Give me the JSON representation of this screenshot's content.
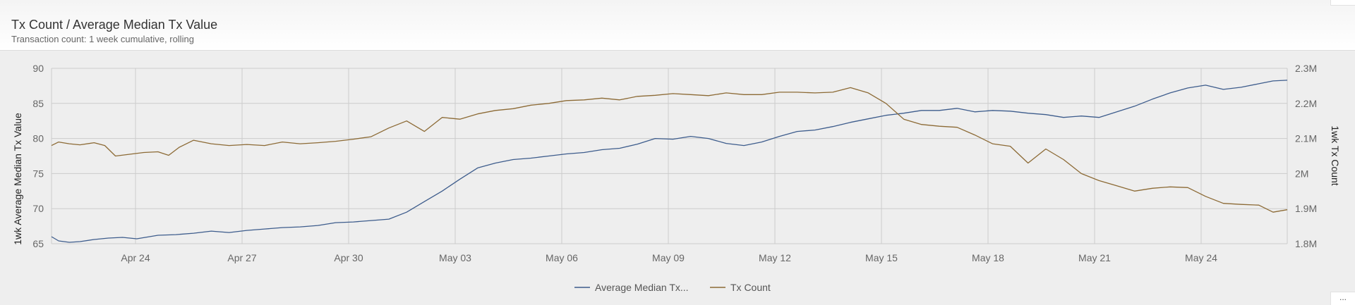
{
  "header": {
    "title": "Tx Count / Average Median Tx Value",
    "subtitle": "Transaction count: 1 week cumulative, rolling"
  },
  "more_label": "...",
  "colors": {
    "avg_median_series": "#3d5c8c",
    "tx_count_series": "#8c6a35",
    "grid": "#cccccc"
  },
  "chart_data": {
    "type": "line",
    "title": "Tx Count / Average Median Tx Value",
    "subtitle": "Transaction count: 1 week cumulative, rolling",
    "x_ticks": [
      "Apr 24",
      "Apr 27",
      "Apr 30",
      "May 03",
      "May 06",
      "May 09",
      "May 12",
      "May 15",
      "May 18",
      "May 21",
      "May 24"
    ],
    "xlim": [
      0,
      34.8
    ],
    "y_left": {
      "label": "1wk Average Median Tx Value",
      "ticks": [
        65,
        70,
        75,
        80,
        85,
        90
      ],
      "ylim": [
        65,
        90
      ]
    },
    "y_right": {
      "label": "1wk Tx Count",
      "ticks": [
        "1.8M",
        "1.9M",
        "2M",
        "2.1M",
        "2.2M",
        "2.3M"
      ],
      "ylim": [
        1800000,
        2300000
      ]
    },
    "grid": true,
    "legend_position": "bottom-center",
    "series": [
      {
        "name": "Average Median Tx...",
        "axis": "left",
        "color": "#3d5c8c",
        "x": [
          0,
          0.2,
          0.5,
          0.8,
          1.2,
          1.6,
          2,
          2.4,
          3,
          3.5,
          4,
          4.5,
          5,
          5.5,
          6,
          6.5,
          7,
          7.5,
          8,
          8.5,
          9,
          9.5,
          10,
          10.5,
          11,
          11.5,
          12,
          12.5,
          13,
          13.5,
          14,
          14.5,
          15,
          15.5,
          16,
          16.5,
          17,
          17.5,
          18,
          18.5,
          19,
          19.5,
          20,
          20.5,
          21,
          21.5,
          22,
          22.5,
          23,
          23.5,
          24,
          24.5,
          25,
          25.5,
          26,
          26.5,
          27,
          27.5,
          28,
          28.5,
          29,
          29.5,
          30,
          30.5,
          31,
          31.5,
          32,
          32.5,
          33,
          33.5,
          34,
          34.4,
          34.8
        ],
        "values": [
          66,
          65.4,
          65.2,
          65.3,
          65.6,
          65.8,
          65.9,
          65.7,
          66.2,
          66.3,
          66.5,
          66.8,
          66.6,
          66.9,
          67.1,
          67.3,
          67.4,
          67.6,
          68,
          68.1,
          68.3,
          68.5,
          69.5,
          71,
          72.5,
          74.2,
          75.8,
          76.5,
          77,
          77.2,
          77.5,
          77.8,
          78,
          78.4,
          78.6,
          79.2,
          80,
          79.9,
          80.3,
          80,
          79.3,
          79,
          79.5,
          80.3,
          81,
          81.2,
          81.7,
          82.3,
          82.8,
          83.3,
          83.6,
          84,
          84,
          84.3,
          83.8,
          84,
          83.9,
          83.6,
          83.4,
          83,
          83.2,
          83,
          83.8,
          84.6,
          85.6,
          86.5,
          87.2,
          87.6,
          87,
          87.3,
          87.8,
          88.2,
          88.3
        ]
      },
      {
        "name": "Tx Count",
        "axis": "right",
        "color": "#8c6a35",
        "x": [
          0,
          0.2,
          0.5,
          0.8,
          1.2,
          1.5,
          1.8,
          2.2,
          2.6,
          3,
          3.3,
          3.6,
          4,
          4.5,
          5,
          5.5,
          6,
          6.5,
          7,
          7.5,
          8,
          8.5,
          9,
          9.5,
          10,
          10.5,
          11,
          11.5,
          12,
          12.5,
          13,
          13.5,
          14,
          14.5,
          15,
          15.5,
          16,
          16.5,
          17,
          17.5,
          18,
          18.5,
          19,
          19.5,
          20,
          20.5,
          21,
          21.5,
          22,
          22.5,
          23,
          23.5,
          24,
          24.5,
          25,
          25.5,
          26,
          26.5,
          27,
          27.5,
          28,
          28.5,
          29,
          29.5,
          30,
          30.5,
          31,
          31.5,
          32,
          32.5,
          33,
          33.5,
          34,
          34.4,
          34.8
        ],
        "values": [
          2080000,
          2090000,
          2085000,
          2082000,
          2088000,
          2080000,
          2050000,
          2055000,
          2060000,
          2062000,
          2052000,
          2075000,
          2095000,
          2085000,
          2080000,
          2083000,
          2080000,
          2090000,
          2085000,
          2088000,
          2092000,
          2098000,
          2105000,
          2130000,
          2150000,
          2120000,
          2160000,
          2155000,
          2170000,
          2180000,
          2185000,
          2195000,
          2200000,
          2208000,
          2210000,
          2215000,
          2210000,
          2220000,
          2223000,
          2228000,
          2225000,
          2222000,
          2230000,
          2225000,
          2225000,
          2232000,
          2232000,
          2230000,
          2232000,
          2245000,
          2230000,
          2200000,
          2155000,
          2140000,
          2135000,
          2132000,
          2110000,
          2085000,
          2078000,
          2030000,
          2070000,
          2040000,
          2000000,
          1980000,
          1965000,
          1950000,
          1958000,
          1962000,
          1960000,
          1935000,
          1915000,
          1912000,
          1910000,
          1890000,
          1897000
        ]
      }
    ]
  }
}
